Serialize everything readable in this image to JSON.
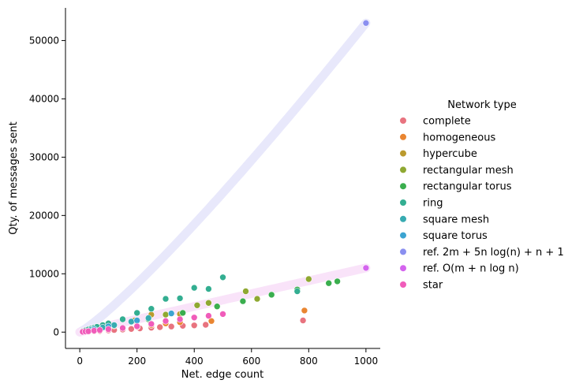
{
  "chart_data": {
    "type": "scatter",
    "xlabel": "Net. edge count",
    "ylabel": "Qty. of messages sent",
    "xlim": [
      -50,
      1050
    ],
    "ylim": [
      -2800,
      55600
    ],
    "xticks": [
      0,
      200,
      400,
      600,
      800,
      1000
    ],
    "yticks": [
      0,
      10000,
      20000,
      30000,
      40000,
      50000
    ],
    "grid": false,
    "legend": {
      "title": "Network type",
      "placement": "right"
    },
    "series": [
      {
        "name": "complete",
        "color": "#e8737f",
        "x": [
          10,
          30,
          50,
          70,
          100,
          120,
          150,
          180,
          210,
          250,
          280,
          320,
          360,
          400,
          440,
          780
        ],
        "y": [
          30,
          80,
          140,
          200,
          300,
          360,
          450,
          540,
          630,
          750,
          850,
          960,
          1080,
          1150,
          1250,
          2000
        ]
      },
      {
        "name": "homogeneous",
        "color": "#e98531",
        "x": [
          50,
          100,
          150,
          200,
          250,
          300,
          350,
          460,
          785
        ],
        "y": [
          300,
          500,
          700,
          900,
          1200,
          1500,
          1700,
          1900,
          3700
        ]
      },
      {
        "name": "hypercube",
        "color": "#bb9a2e",
        "x": [
          12,
          32,
          80,
          192,
          250,
          350
        ],
        "y": [
          100,
          300,
          800,
          2000,
          3000,
          3100
        ]
      },
      {
        "name": "rectangular mesh",
        "color": "#8fa832",
        "x": [
          100,
          200,
          300,
          410,
          450,
          580,
          620,
          800
        ],
        "y": [
          1000,
          2000,
          3000,
          4600,
          5000,
          7000,
          5700,
          9100
        ]
      },
      {
        "name": "rectangular torus",
        "color": "#3aae4e",
        "x": [
          120,
          240,
          360,
          480,
          570,
          670,
          760,
          870,
          900
        ],
        "y": [
          1100,
          2200,
          3300,
          4400,
          5300,
          6400,
          7300,
          8400,
          8700
        ]
      },
      {
        "name": "ring",
        "color": "#33ae91",
        "x": [
          10,
          20,
          30,
          40,
          50,
          60,
          80,
          100,
          150,
          200,
          250,
          300,
          350,
          400,
          450,
          500,
          760
        ],
        "y": [
          150,
          300,
          450,
          600,
          750,
          900,
          1200,
          1500,
          2200,
          3300,
          4000,
          5700,
          5800,
          7600,
          7400,
          9400,
          7000
        ]
      },
      {
        "name": "square mesh",
        "color": "#37abb1",
        "x": [
          40,
          80,
          120,
          180,
          240
        ],
        "y": [
          400,
          800,
          1200,
          1800,
          2400
        ]
      },
      {
        "name": "square torus",
        "color": "#3ca4d1",
        "x": [
          50,
          100,
          200,
          320
        ],
        "y": [
          500,
          1000,
          2000,
          3200
        ]
      },
      {
        "name": "ref. 2m + 5n log(n) + n + 1",
        "color": "#8a8ff0",
        "x": [
          1000
        ],
        "y": [
          53000
        ]
      },
      {
        "name": "ref. O(m + n log n)",
        "color": "#d464ee",
        "x": [
          1000
        ],
        "y": [
          11000
        ]
      },
      {
        "name": "star",
        "color": "#f05cba",
        "x": [
          10,
          20,
          30,
          50,
          70,
          100,
          150,
          200,
          250,
          300,
          350,
          400,
          450,
          500
        ],
        "y": [
          50,
          100,
          150,
          250,
          350,
          500,
          700,
          1000,
          1400,
          1900,
          2200,
          2500,
          2800,
          3100
        ]
      }
    ],
    "reference_bands": [
      {
        "name": "ref. 2m + 5n log(n) + n + 1",
        "color": "#e8e8fb",
        "x_end": 1000,
        "y_end": 53000,
        "shape": "curve"
      },
      {
        "name": "ref. O(m + n log n)",
        "color": "#f9e3f9",
        "x_end": 1000,
        "y_end": 11000,
        "shape": "linear"
      }
    ]
  }
}
